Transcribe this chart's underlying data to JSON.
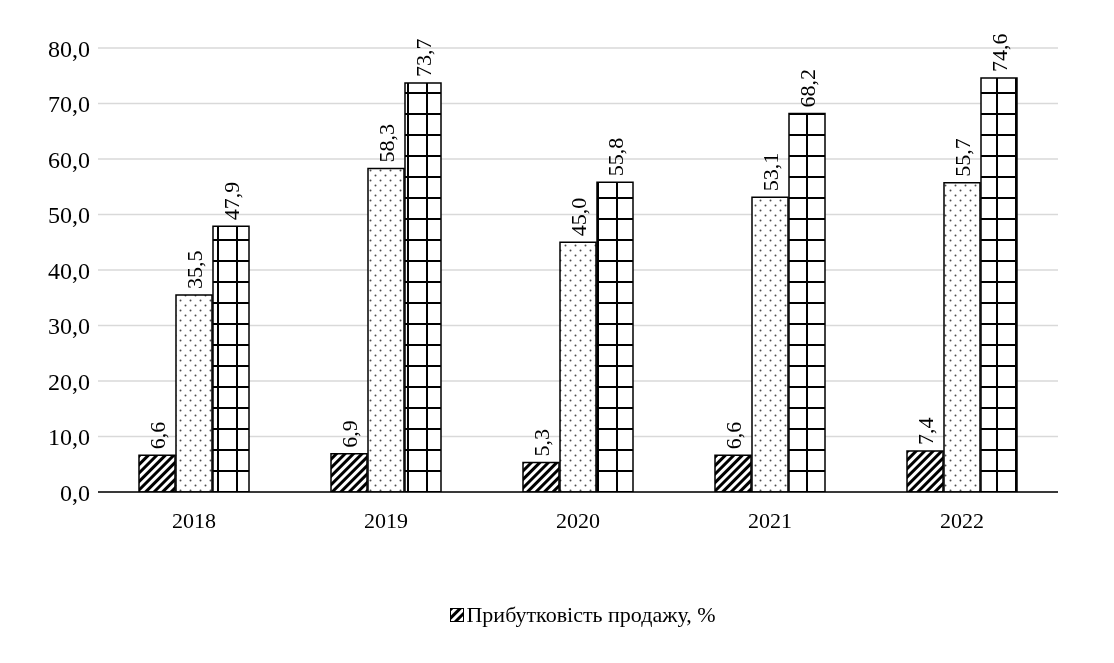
{
  "chart_data": {
    "type": "bar",
    "categories": [
      "2018",
      "2019",
      "2020",
      "2021",
      "2022"
    ],
    "series": [
      {
        "name": "Прибутковість продажу, %",
        "color": "#000000",
        "values": [
          6.6,
          6.9,
          5.3,
          6.6,
          7.4
        ],
        "value_labels": [
          "6,6",
          "6,9",
          "5,3",
          "6,6",
          "7,4"
        ]
      },
      {
        "color": "#000000",
        "values": [
          35.5,
          58.3,
          45.0,
          53.1,
          55.7
        ],
        "value_labels": [
          "35,5",
          "58,3",
          "45,0",
          "53,1",
          "55,7"
        ]
      },
      {
        "color": "#000000",
        "values": [
          47.9,
          73.7,
          55.8,
          68.2,
          74.6
        ],
        "value_labels": [
          "47,9",
          "73,7",
          "55,8",
          "68,2",
          "74,6"
        ]
      }
    ],
    "ylim": [
      0,
      80
    ],
    "yticks": [
      {
        "value": 0,
        "label": "0,0"
      },
      {
        "value": 10,
        "label": "10,0"
      },
      {
        "value": 20,
        "label": "20,0"
      },
      {
        "value": 30,
        "label": "30,0"
      },
      {
        "value": 40,
        "label": "40,0"
      },
      {
        "value": 50,
        "label": "50,0"
      },
      {
        "value": 60,
        "label": "60,0"
      },
      {
        "value": 70,
        "label": "70,0"
      },
      {
        "value": 80,
        "label": "80,0"
      }
    ],
    "grid": "y",
    "legend": "bottom"
  }
}
